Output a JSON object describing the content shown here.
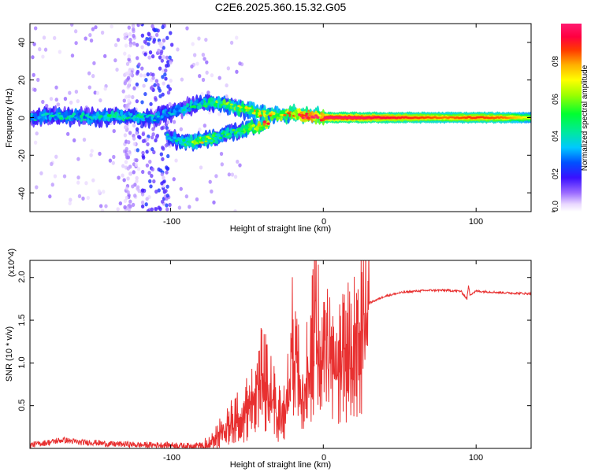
{
  "title": "C2E6.2025.360.15.32.G05",
  "chart_data": [
    {
      "type": "heatmap",
      "xlabel": "Height of straight line (km)",
      "ylabel": "Frequency (Hz)",
      "xlim": [
        -192,
        136
      ],
      "ylim": [
        -50,
        50
      ],
      "xticks": [
        -100,
        0,
        100
      ],
      "xtick_labels": [
        "-100",
        "0",
        "100"
      ],
      "yticks": [
        -40,
        -20,
        0,
        20,
        40
      ],
      "ytick_labels": [
        "-40",
        "-20",
        "0",
        "20",
        "40"
      ],
      "colorbar": {
        "label": "Normalized spectral amplitude",
        "range": [
          0,
          1
        ],
        "ticks": [
          0.0,
          0.2,
          0.4,
          0.6,
          0.8
        ],
        "tick_labels": [
          "0.0",
          "0.2",
          "0.4",
          "0.6",
          "0.8"
        ]
      },
      "ridges": [
        {
          "name": "main-band",
          "x": [
            -192,
            -170,
            -150,
            -130,
            -120,
            -110,
            -100,
            -90,
            -80,
            -70,
            -60,
            -50,
            -40,
            -30,
            -20,
            -10,
            0,
            20,
            40,
            60,
            80,
            100,
            120,
            136
          ],
          "y": [
            0,
            1,
            0,
            1,
            0,
            0,
            3,
            5,
            7,
            8,
            6,
            4,
            2,
            1,
            2,
            1,
            0,
            0,
            0,
            0,
            0,
            0,
            0,
            0
          ],
          "amplitude": [
            0.3,
            0.35,
            0.35,
            0.4,
            0.35,
            0.3,
            0.3,
            0.35,
            0.4,
            0.45,
            0.5,
            0.55,
            0.6,
            0.65,
            0.75,
            0.85,
            0.9,
            0.9,
            0.85,
            0.8,
            0.75,
            0.8,
            0.75,
            0.6
          ]
        },
        {
          "name": "lower-branch",
          "x": [
            -102,
            -95,
            -90,
            -85,
            -80,
            -72,
            -65,
            -60,
            -55,
            -50,
            -45,
            -40,
            -35
          ],
          "y": [
            -10,
            -12,
            -13,
            -13,
            -12,
            -11,
            -9,
            -8,
            -7,
            -6,
            -5,
            -4,
            -3
          ],
          "amplitude": [
            0.3,
            0.35,
            0.4,
            0.5,
            0.55,
            0.45,
            0.4,
            0.4,
            0.45,
            0.5,
            0.55,
            0.65,
            0.75
          ]
        }
      ]
    },
    {
      "type": "line",
      "xlabel": "Height of straight line (km)",
      "ylabel": "SNR (10 * v/v)",
      "scale_label": "(x10^4)",
      "xlim": [
        -192,
        136
      ],
      "ylim": [
        0,
        2.2
      ],
      "xticks": [
        -100,
        0,
        100
      ],
      "xtick_labels": [
        "-100",
        "0",
        "100"
      ],
      "yticks": [
        0.5,
        1.0,
        1.5,
        2.0
      ],
      "ytick_labels": [
        "0.5",
        "1.0",
        "1.5",
        "2.0"
      ],
      "color": "#e83030",
      "series": [
        {
          "name": "SNR",
          "x": [
            -192,
            -180,
            -170,
            -160,
            -150,
            -140,
            -130,
            -120,
            -110,
            -100,
            -90,
            -80,
            -75,
            -70,
            -65,
            -60,
            -55,
            -50,
            -45,
            -42,
            -40,
            -38,
            -35,
            -30,
            -25,
            -22,
            -20,
            -18,
            -15,
            -12,
            -10,
            -8,
            -6,
            -5,
            -4,
            -2,
            0,
            2,
            5,
            8,
            10,
            12,
            15,
            20,
            25,
            30,
            40,
            50,
            60,
            70,
            80,
            90,
            94,
            95,
            96,
            98,
            100,
            110,
            120,
            136
          ],
          "y": [
            0.04,
            0.07,
            0.1,
            0.07,
            0.07,
            0.05,
            0.05,
            0.04,
            0.04,
            0.04,
            0.03,
            0.04,
            0.06,
            0.15,
            0.3,
            0.38,
            0.45,
            0.55,
            0.7,
            1.0,
            1.25,
            0.95,
            0.8,
            0.5,
            0.55,
            1.0,
            1.5,
            1.1,
            0.9,
            1.0,
            1.1,
            1.3,
            1.6,
            2.1,
            1.6,
            1.3,
            1.2,
            1.35,
            1.2,
            0.9,
            1.1,
            1.2,
            1.35,
            1.5,
            1.6,
            1.7,
            1.78,
            1.82,
            1.84,
            1.85,
            1.85,
            1.84,
            1.75,
            1.9,
            1.8,
            1.82,
            1.84,
            1.83,
            1.82,
            1.81
          ]
        }
      ]
    }
  ]
}
